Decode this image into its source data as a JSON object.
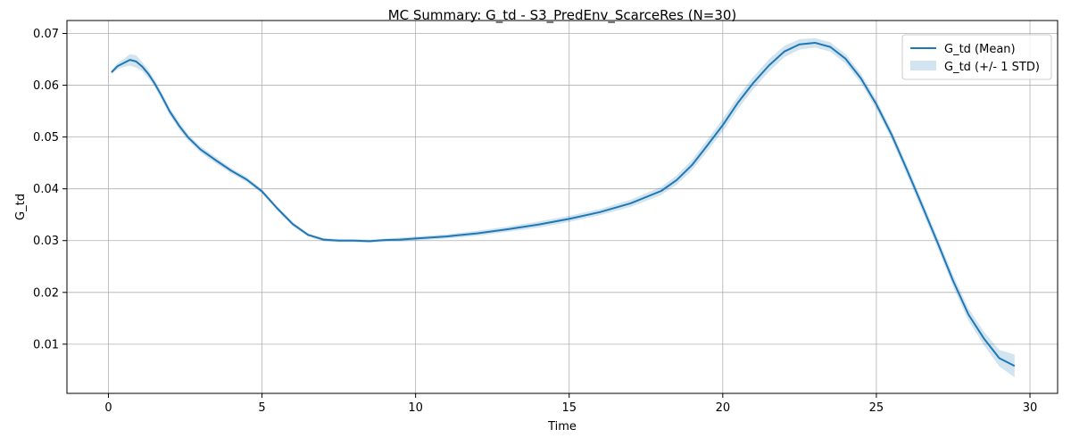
{
  "chart_data": {
    "type": "line",
    "title": "MC Summary: G_td - S3_PredEnv_ScarceRes (N=30)",
    "xlabel": "Time",
    "ylabel": "G_td",
    "xlim": [
      -1.35,
      30.9
    ],
    "ylim": [
      0.0005,
      0.0725
    ],
    "xticks": [
      0,
      5,
      10,
      15,
      20,
      25,
      30
    ],
    "yticks": [
      0.01,
      0.02,
      0.03,
      0.04,
      0.05,
      0.06,
      0.07
    ],
    "xtick_labels": [
      "0",
      "5",
      "10",
      "15",
      "20",
      "25",
      "30"
    ],
    "ytick_labels": [
      "0.01",
      "0.02",
      "0.03",
      "0.04",
      "0.05",
      "0.06",
      "0.07"
    ],
    "grid": true,
    "legend_position": "top-right",
    "series": [
      {
        "name": "G_td (Mean)",
        "kind": "line",
        "color": "#1f77b4",
        "x": [
          0.1,
          0.3,
          0.5,
          0.7,
          0.9,
          1.1,
          1.3,
          1.5,
          1.7,
          2.0,
          2.3,
          2.6,
          3.0,
          3.5,
          4.0,
          4.5,
          5.0,
          5.5,
          6.0,
          6.5,
          7.0,
          7.5,
          8.0,
          8.5,
          9.0,
          9.5,
          10.0,
          11.0,
          12.0,
          13.0,
          14.0,
          15.0,
          16.0,
          17.0,
          18.0,
          18.5,
          19.0,
          19.5,
          20.0,
          20.5,
          21.0,
          21.5,
          22.0,
          22.5,
          23.0,
          23.5,
          24.0,
          24.5,
          25.0,
          25.5,
          26.0,
          26.5,
          27.0,
          27.5,
          28.0,
          28.5,
          29.0,
          29.5
        ],
        "y": [
          0.0625,
          0.0637,
          0.0643,
          0.0649,
          0.0646,
          0.0636,
          0.0622,
          0.0604,
          0.0583,
          0.0549,
          0.0522,
          0.0499,
          0.0476,
          0.0455,
          0.0435,
          0.0418,
          0.0395,
          0.0362,
          0.0332,
          0.0311,
          0.0302,
          0.03,
          0.03,
          0.0299,
          0.0301,
          0.0302,
          0.0304,
          0.0308,
          0.0314,
          0.0322,
          0.0331,
          0.0342,
          0.0355,
          0.0372,
          0.0396,
          0.0417,
          0.0446,
          0.0484,
          0.0523,
          0.0567,
          0.0605,
          0.0638,
          0.0665,
          0.0679,
          0.0682,
          0.0674,
          0.0651,
          0.0613,
          0.0563,
          0.0504,
          0.0436,
          0.0366,
          0.0295,
          0.0222,
          0.0157,
          0.0111,
          0.0073,
          0.0058
        ]
      },
      {
        "name": "G_td (+/- 1 STD)",
        "kind": "band",
        "color": "#1f77b4",
        "opacity": 0.2,
        "x": [
          0.1,
          0.3,
          0.5,
          0.7,
          0.9,
          1.1,
          1.3,
          1.5,
          1.7,
          2.0,
          2.3,
          2.6,
          3.0,
          3.5,
          4.0,
          4.5,
          5.0,
          5.5,
          6.0,
          6.5,
          7.0,
          7.5,
          8.0,
          8.5,
          9.0,
          9.5,
          10.0,
          11.0,
          12.0,
          13.0,
          14.0,
          15.0,
          16.0,
          17.0,
          18.0,
          18.5,
          19.0,
          19.5,
          20.0,
          20.5,
          21.0,
          21.5,
          22.0,
          22.5,
          23.0,
          23.5,
          24.0,
          24.5,
          25.0,
          25.5,
          26.0,
          26.5,
          27.0,
          27.5,
          28.0,
          28.5,
          29.0,
          29.5
        ],
        "std": [
          0.0004,
          0.0006,
          0.0008,
          0.0011,
          0.0012,
          0.0009,
          0.0008,
          0.0007,
          0.0007,
          0.0007,
          0.0007,
          0.0006,
          0.0006,
          0.0006,
          0.0005,
          0.0005,
          0.0004,
          0.0004,
          0.0004,
          0.0003,
          0.0003,
          0.0003,
          0.0003,
          0.0003,
          0.0003,
          0.0004,
          0.0004,
          0.0004,
          0.0005,
          0.0005,
          0.0006,
          0.0006,
          0.0006,
          0.0007,
          0.0008,
          0.0009,
          0.001,
          0.0011,
          0.0012,
          0.0012,
          0.0012,
          0.0012,
          0.0011,
          0.001,
          0.0009,
          0.0009,
          0.0009,
          0.0009,
          0.0009,
          0.0009,
          0.001,
          0.001,
          0.001,
          0.0011,
          0.0012,
          0.0013,
          0.0016,
          0.0022
        ]
      }
    ]
  }
}
